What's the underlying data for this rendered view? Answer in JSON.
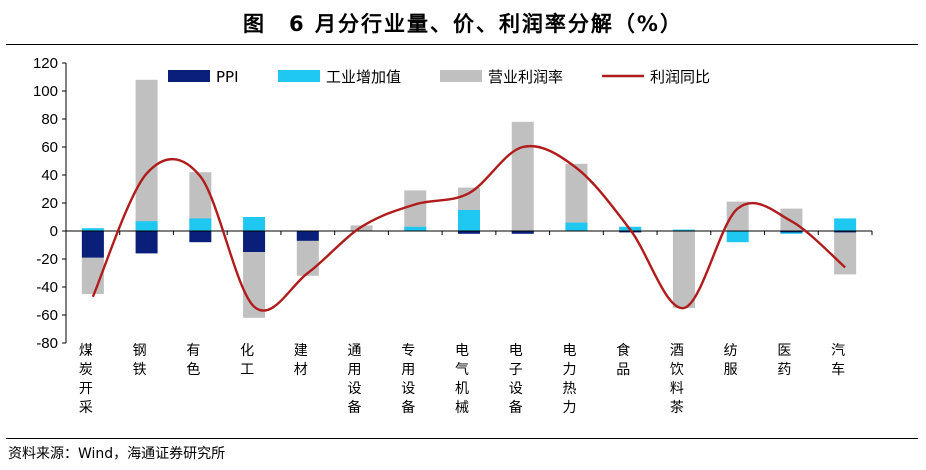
{
  "title": "图　6 月分行业量、价、利润率分解（%）",
  "source": "资料来源：Wind，海通证券研究所",
  "colors": {
    "ppi": "#0a1f7a",
    "industrial_value_added": "#1ec8f0",
    "operating_margin": "#c0c0c0",
    "profit_yoy": "#b01c1c",
    "axis": "#000000"
  },
  "chart_data": {
    "type": "bar+line",
    "title": "6 月分行业量、价、利润率分解（%）",
    "ylim": [
      -80,
      120
    ],
    "yticks": [
      -80,
      -60,
      -40,
      -20,
      0,
      20,
      40,
      60,
      80,
      100,
      120
    ],
    "legend_position": "top",
    "categories": [
      "煤炭开采",
      "钢铁",
      "有色",
      "化工",
      "建材",
      "通用设备",
      "专用设备",
      "电气机械",
      "电子设备",
      "电力热力",
      "食品",
      "酒饮料茶",
      "纺服",
      "医药",
      "汽车"
    ],
    "series": [
      {
        "name": "PPI",
        "type": "bar",
        "values": [
          -19,
          -16,
          -8,
          -15,
          -7,
          0,
          0,
          -2,
          -2,
          0,
          -1,
          0,
          0,
          -1,
          -1
        ]
      },
      {
        "name": "工业增加值",
        "type": "bar",
        "values": [
          2,
          7,
          9,
          10,
          0,
          0,
          3,
          15,
          -1,
          6,
          3,
          1,
          -8,
          -2,
          9
        ]
      },
      {
        "name": "营业利润率",
        "type": "bar",
        "values": [
          -45,
          108,
          42,
          -62,
          -32,
          4,
          29,
          31,
          78,
          48,
          3,
          -55,
          21,
          16,
          -31
        ]
      },
      {
        "name": "利润同比",
        "type": "line",
        "values": [
          -47,
          41,
          39,
          -54,
          -30,
          3,
          19,
          27,
          60,
          45,
          1,
          -55,
          16,
          7,
          -26
        ]
      }
    ]
  }
}
